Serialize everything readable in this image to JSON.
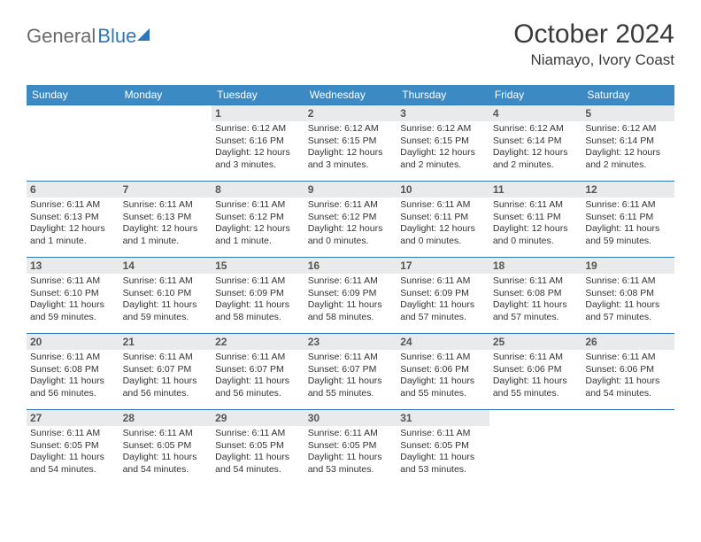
{
  "logo": {
    "word1": "General",
    "word2": "Blue"
  },
  "title": "October 2024",
  "location": "Niamayo, Ivory Coast",
  "colors": {
    "header_bg": "#3b8ac4",
    "header_text": "#ffffff",
    "rule": "#2f77bb",
    "daynum_bg": "#e9eaec",
    "text": "#333333",
    "logo_gray": "#6a6a6a",
    "logo_blue": "#2f77bb"
  },
  "day_headers": [
    "Sunday",
    "Monday",
    "Tuesday",
    "Wednesday",
    "Thursday",
    "Friday",
    "Saturday"
  ],
  "weeks": [
    [
      null,
      null,
      {
        "n": "1",
        "sunrise": "6:12 AM",
        "sunset": "6:16 PM",
        "daylight": "12 hours and 3 minutes."
      },
      {
        "n": "2",
        "sunrise": "6:12 AM",
        "sunset": "6:15 PM",
        "daylight": "12 hours and 3 minutes."
      },
      {
        "n": "3",
        "sunrise": "6:12 AM",
        "sunset": "6:15 PM",
        "daylight": "12 hours and 2 minutes."
      },
      {
        "n": "4",
        "sunrise": "6:12 AM",
        "sunset": "6:14 PM",
        "daylight": "12 hours and 2 minutes."
      },
      {
        "n": "5",
        "sunrise": "6:12 AM",
        "sunset": "6:14 PM",
        "daylight": "12 hours and 2 minutes."
      }
    ],
    [
      {
        "n": "6",
        "sunrise": "6:11 AM",
        "sunset": "6:13 PM",
        "daylight": "12 hours and 1 minute."
      },
      {
        "n": "7",
        "sunrise": "6:11 AM",
        "sunset": "6:13 PM",
        "daylight": "12 hours and 1 minute."
      },
      {
        "n": "8",
        "sunrise": "6:11 AM",
        "sunset": "6:12 PM",
        "daylight": "12 hours and 1 minute."
      },
      {
        "n": "9",
        "sunrise": "6:11 AM",
        "sunset": "6:12 PM",
        "daylight": "12 hours and 0 minutes."
      },
      {
        "n": "10",
        "sunrise": "6:11 AM",
        "sunset": "6:11 PM",
        "daylight": "12 hours and 0 minutes."
      },
      {
        "n": "11",
        "sunrise": "6:11 AM",
        "sunset": "6:11 PM",
        "daylight": "12 hours and 0 minutes."
      },
      {
        "n": "12",
        "sunrise": "6:11 AM",
        "sunset": "6:11 PM",
        "daylight": "11 hours and 59 minutes."
      }
    ],
    [
      {
        "n": "13",
        "sunrise": "6:11 AM",
        "sunset": "6:10 PM",
        "daylight": "11 hours and 59 minutes."
      },
      {
        "n": "14",
        "sunrise": "6:11 AM",
        "sunset": "6:10 PM",
        "daylight": "11 hours and 59 minutes."
      },
      {
        "n": "15",
        "sunrise": "6:11 AM",
        "sunset": "6:09 PM",
        "daylight": "11 hours and 58 minutes."
      },
      {
        "n": "16",
        "sunrise": "6:11 AM",
        "sunset": "6:09 PM",
        "daylight": "11 hours and 58 minutes."
      },
      {
        "n": "17",
        "sunrise": "6:11 AM",
        "sunset": "6:09 PM",
        "daylight": "11 hours and 57 minutes."
      },
      {
        "n": "18",
        "sunrise": "6:11 AM",
        "sunset": "6:08 PM",
        "daylight": "11 hours and 57 minutes."
      },
      {
        "n": "19",
        "sunrise": "6:11 AM",
        "sunset": "6:08 PM",
        "daylight": "11 hours and 57 minutes."
      }
    ],
    [
      {
        "n": "20",
        "sunrise": "6:11 AM",
        "sunset": "6:08 PM",
        "daylight": "11 hours and 56 minutes."
      },
      {
        "n": "21",
        "sunrise": "6:11 AM",
        "sunset": "6:07 PM",
        "daylight": "11 hours and 56 minutes."
      },
      {
        "n": "22",
        "sunrise": "6:11 AM",
        "sunset": "6:07 PM",
        "daylight": "11 hours and 56 minutes."
      },
      {
        "n": "23",
        "sunrise": "6:11 AM",
        "sunset": "6:07 PM",
        "daylight": "11 hours and 55 minutes."
      },
      {
        "n": "24",
        "sunrise": "6:11 AM",
        "sunset": "6:06 PM",
        "daylight": "11 hours and 55 minutes."
      },
      {
        "n": "25",
        "sunrise": "6:11 AM",
        "sunset": "6:06 PM",
        "daylight": "11 hours and 55 minutes."
      },
      {
        "n": "26",
        "sunrise": "6:11 AM",
        "sunset": "6:06 PM",
        "daylight": "11 hours and 54 minutes."
      }
    ],
    [
      {
        "n": "27",
        "sunrise": "6:11 AM",
        "sunset": "6:05 PM",
        "daylight": "11 hours and 54 minutes."
      },
      {
        "n": "28",
        "sunrise": "6:11 AM",
        "sunset": "6:05 PM",
        "daylight": "11 hours and 54 minutes."
      },
      {
        "n": "29",
        "sunrise": "6:11 AM",
        "sunset": "6:05 PM",
        "daylight": "11 hours and 54 minutes."
      },
      {
        "n": "30",
        "sunrise": "6:11 AM",
        "sunset": "6:05 PM",
        "daylight": "11 hours and 53 minutes."
      },
      {
        "n": "31",
        "sunrise": "6:11 AM",
        "sunset": "6:05 PM",
        "daylight": "11 hours and 53 minutes."
      },
      null,
      null
    ]
  ],
  "labels": {
    "sunrise": "Sunrise:",
    "sunset": "Sunset:",
    "daylight": "Daylight:"
  }
}
